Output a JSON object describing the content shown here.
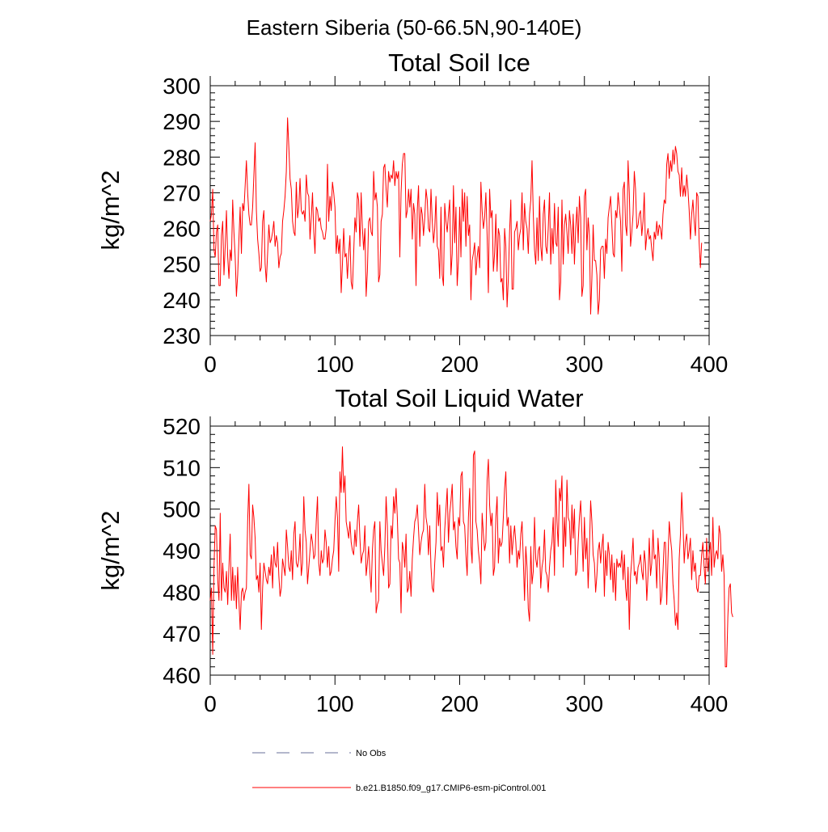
{
  "figure": {
    "suptitle": "Eastern Siberia (50-66.5N,90-140E)",
    "legend": [
      {
        "label": "No Obs",
        "color": "#6a6f9a",
        "style": "dashed"
      },
      {
        "label": "b.e21.B1850.f09_g17.CMIP6-esm-piControl.001",
        "color": "#ff0000",
        "style": "solid"
      }
    ]
  },
  "chart_data": [
    {
      "type": "line",
      "title": "Total Soil Ice",
      "xlabel": "",
      "ylabel": "kg/m^2",
      "xlim": [
        0,
        400
      ],
      "ylim": [
        230,
        300
      ],
      "xticks": [
        0,
        100,
        200,
        300,
        400
      ],
      "yticks": [
        230,
        240,
        250,
        260,
        270,
        280,
        290,
        300
      ],
      "grid": false,
      "series": [
        {
          "name": "b.e21.B1850.f09_g17.CMIP6-esm-piControl.001",
          "color": "#ff0000",
          "x_start": 0,
          "x_step": 1,
          "values": [
            262,
            264,
            271,
            254,
            252,
            259,
            261,
            244,
            244,
            258,
            262,
            247,
            255,
            265,
            252,
            246,
            254,
            251,
            268,
            259,
            252,
            241,
            247,
            257,
            266,
            253,
            267,
            265,
            272,
            279,
            270,
            264,
            261,
            261,
            266,
            275,
            284,
            265,
            257,
            253,
            248,
            249,
            262,
            265,
            250,
            245,
            253,
            261,
            256,
            257,
            259,
            262,
            255,
            258,
            256,
            249,
            252,
            253,
            262,
            265,
            269,
            276,
            291,
            283,
            274,
            271,
            262,
            259,
            258,
            273,
            263,
            266,
            274,
            265,
            264,
            265,
            262,
            275,
            270,
            269,
            257,
            263,
            270,
            259,
            253,
            266,
            265,
            262,
            263,
            260,
            259,
            257,
            257,
            260,
            278,
            262,
            269,
            265,
            273,
            270,
            266,
            253,
            258,
            253,
            257,
            242,
            250,
            260,
            252,
            253,
            246,
            253,
            258,
            245,
            243,
            253,
            263,
            259,
            270,
            268,
            255,
            270,
            260,
            254,
            260,
            241,
            248,
            262,
            263,
            259,
            258,
            276,
            268,
            270,
            266,
            245,
            247,
            262,
            264,
            277,
            278,
            271,
            266,
            276,
            273,
            275,
            274,
            279,
            272,
            276,
            274,
            276,
            252,
            270,
            278,
            281,
            281,
            263,
            265,
            271,
            266,
            271,
            257,
            267,
            264,
            244,
            265,
            272,
            255,
            266,
            264,
            258,
            263,
            271,
            268,
            260,
            259,
            271,
            262,
            256,
            260,
            269,
            255,
            254,
            246,
            266,
            247,
            244,
            267,
            262,
            259,
            264,
            268,
            247,
            253,
            272,
            256,
            266,
            244,
            251,
            266,
            252,
            271,
            262,
            270,
            255,
            269,
            258,
            261,
            240,
            251,
            253,
            256,
            247,
            252,
            255,
            249,
            273,
            265,
            260,
            263,
            270,
            258,
            242,
            271,
            263,
            265,
            248,
            253,
            264,
            248,
            260,
            258,
            245,
            246,
            240,
            260,
            255,
            238,
            246,
            259,
            268,
            243,
            243,
            259,
            260,
            262,
            254,
            258,
            260,
            270,
            254,
            267,
            262,
            260,
            253,
            264,
            268,
            279,
            264,
            254,
            250,
            263,
            251,
            269,
            255,
            251,
            264,
            268,
            255,
            253,
            260,
            270,
            250,
            260,
            253,
            267,
            256,
            255,
            266,
            240,
            245,
            268,
            250,
            261,
            264,
            259,
            253,
            265,
            261,
            253,
            264,
            250,
            260,
            266,
            256,
            269,
            263,
            241,
            244,
            269,
            271,
            254,
            263,
            258,
            236,
            246,
            261,
            251,
            251,
            247,
            236,
            240,
            254,
            255,
            255,
            246,
            257,
            253,
            263,
            266,
            269,
            261,
            253,
            252,
            265,
            263,
            270,
            266,
            262,
            248,
            271,
            273,
            261,
            258,
            279,
            270,
            255,
            259,
            264,
            276,
            271,
            260,
            261,
            264,
            265,
            258,
            262,
            270,
            254,
            258,
            260,
            257,
            258,
            254,
            251,
            259,
            257,
            262,
            258,
            261,
            260,
            257,
            264,
            268,
            267,
            278,
            281,
            274,
            279,
            276,
            282,
            278,
            283,
            281,
            276,
            275,
            269,
            277,
            269,
            272,
            269,
            275,
            271,
            265,
            257,
            264,
            268,
            262,
            258,
            270,
            269,
            256,
            249,
            256
          ]
        }
      ]
    },
    {
      "type": "line",
      "title": "Total Soil Liquid Water",
      "xlabel": "",
      "ylabel": "kg/m^2",
      "xlim": [
        0,
        400
      ],
      "ylim": [
        460,
        520
      ],
      "xticks": [
        0,
        100,
        200,
        300,
        400
      ],
      "yticks": [
        460,
        470,
        480,
        490,
        500,
        510,
        520
      ],
      "grid": false,
      "series": [
        {
          "name": "b.e21.B1850.f09_g17.CMIP6-esm-piControl.001",
          "color": "#ff0000",
          "x_start": 0,
          "x_step": 1,
          "values": [
            478,
            481,
            465,
            486,
            496,
            495,
            483,
            478,
            499,
            478,
            487,
            481,
            480,
            485,
            477,
            486,
            494,
            478,
            486,
            478,
            484,
            476,
            486,
            478,
            471,
            480,
            481,
            478,
            480,
            481,
            497,
            506,
            489,
            488,
            501,
            498,
            493,
            483,
            484,
            480,
            487,
            471,
            481,
            487,
            485,
            483,
            482,
            486,
            484,
            489,
            481,
            491,
            487,
            486,
            492,
            484,
            479,
            481,
            488,
            486,
            484,
            495,
            491,
            486,
            485,
            490,
            483,
            494,
            497,
            487,
            486,
            488,
            494,
            484,
            487,
            503,
            495,
            492,
            482,
            486,
            490,
            494,
            492,
            488,
            489,
            497,
            503,
            487,
            484,
            490,
            487,
            488,
            495,
            492,
            486,
            491,
            484,
            485,
            488,
            490,
            497,
            503,
            498,
            485,
            509,
            504,
            515,
            504,
            508,
            497,
            495,
            493,
            497,
            492,
            490,
            489,
            495,
            491,
            497,
            501,
            493,
            487,
            489,
            490,
            496,
            484,
            487,
            491,
            485,
            480,
            490,
            495,
            497,
            475,
            477,
            478,
            497,
            490,
            487,
            484,
            491,
            503,
            496,
            481,
            482,
            496,
            493,
            503,
            499,
            505,
            498,
            488,
            487,
            475,
            492,
            490,
            486,
            494,
            480,
            481,
            485,
            479,
            488,
            493,
            497,
            498,
            501,
            495,
            489,
            492,
            494,
            495,
            506,
            498,
            496,
            489,
            496,
            486,
            481,
            480,
            487,
            492,
            504,
            496,
            501,
            490,
            491,
            486,
            495,
            500,
            505,
            492,
            499,
            502,
            506,
            495,
            497,
            491,
            488,
            498,
            496,
            508,
            509,
            497,
            496,
            489,
            484,
            498,
            505,
            491,
            487,
            513,
            514,
            497,
            495,
            490,
            487,
            482,
            499,
            494,
            490,
            492,
            507,
            512,
            501,
            496,
            499,
            484,
            486,
            498,
            503,
            487,
            493,
            491,
            492,
            498,
            505,
            509,
            496,
            498,
            487,
            496,
            489,
            493,
            496,
            492,
            486,
            490,
            488,
            494,
            497,
            488,
            478,
            491,
            486,
            476,
            473,
            491,
            482,
            485,
            498,
            488,
            486,
            490,
            491,
            481,
            486,
            488,
            495,
            485,
            484,
            480,
            486,
            490,
            492,
            498,
            484,
            507,
            497,
            491,
            505,
            502,
            508,
            486,
            498,
            491,
            507,
            498,
            497,
            489,
            501,
            493,
            500,
            484,
            485,
            492,
            498,
            502,
            494,
            485,
            498,
            488,
            493,
            481,
            490,
            502,
            497,
            489,
            487,
            480,
            484,
            490,
            492,
            487,
            491,
            494,
            479,
            490,
            484,
            492,
            489,
            483,
            489,
            480,
            487,
            478,
            488,
            486,
            487,
            486,
            490,
            483,
            489,
            481,
            478,
            486,
            471,
            484,
            488,
            493,
            484,
            485,
            482,
            486,
            487,
            489,
            485,
            483,
            490,
            487,
            478,
            484,
            493,
            484,
            487,
            495,
            488,
            489,
            481,
            493,
            488,
            477,
            479,
            485,
            492,
            492,
            477,
            488,
            497,
            493,
            490,
            482,
            478,
            472,
            475,
            471,
            488,
            494,
            504,
            497,
            487,
            492,
            494,
            488,
            490,
            493,
            483,
            490,
            485,
            487,
            481,
            480,
            484,
            484,
            489,
            492,
            486,
            482,
            493,
            485,
            489,
            492,
            484,
            498,
            486,
            489,
            490,
            488,
            496,
            494,
            485,
            489,
            484,
            462,
            462,
            474,
            481,
            482,
            475,
            474
          ]
        }
      ]
    }
  ]
}
